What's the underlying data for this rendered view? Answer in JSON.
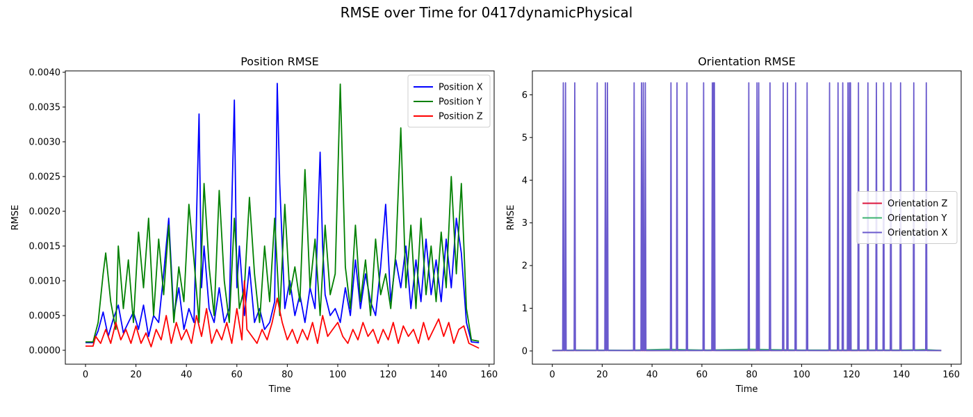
{
  "figure": {
    "suptitle": "RMSE over Time for 0417dynamicPhysical"
  },
  "chart_data": [
    {
      "type": "line",
      "title": "Position RMSE",
      "xlabel": "Time",
      "ylabel": "RMSE",
      "xlim": [
        -8,
        162
      ],
      "ylim": [
        -0.0002,
        0.00402
      ],
      "xticks": [
        0,
        20,
        40,
        60,
        80,
        100,
        120,
        140,
        160
      ],
      "yticks": [
        0.0,
        0.0005,
        0.001,
        0.0015,
        0.002,
        0.0025,
        0.003,
        0.0035,
        0.004
      ],
      "ytick_labels": [
        "0.0000",
        "0.0005",
        "0.0010",
        "0.0015",
        "0.0020",
        "0.0025",
        "0.0030",
        "0.0035",
        "0.0040"
      ],
      "grid": false,
      "legend": "top-right",
      "series": [
        {
          "name": "Position X",
          "color": "#0000ff",
          "x": [
            0,
            3,
            5,
            7,
            9,
            11,
            13,
            15,
            17,
            19,
            21,
            23,
            25,
            27,
            29,
            31,
            33,
            35,
            37,
            39,
            41,
            43,
            45,
            46,
            47,
            49,
            51,
            53,
            55,
            57,
            59,
            60,
            61,
            63,
            65,
            67,
            69,
            71,
            73,
            75,
            76,
            77,
            79,
            81,
            83,
            85,
            87,
            89,
            91,
            93,
            94,
            95,
            97,
            99,
            101,
            103,
            105,
            107,
            109,
            111,
            113,
            115,
            117,
            119,
            121,
            123,
            125,
            127,
            129,
            131,
            133,
            135,
            137,
            139,
            141,
            143,
            145,
            147,
            149,
            151,
            153,
            156
          ],
          "y": [
            0.00011,
            0.00011,
            0.00028,
            0.00055,
            0.0002,
            0.00045,
            0.00065,
            0.00025,
            0.0004,
            0.00055,
            0.0003,
            0.00065,
            0.0002,
            0.0005,
            0.0004,
            0.0011,
            0.0019,
            0.0005,
            0.0009,
            0.0003,
            0.0006,
            0.0004,
            0.0034,
            0.0009,
            0.0015,
            0.0006,
            0.0004,
            0.0009,
            0.0004,
            0.0006,
            0.0036,
            0.0009,
            0.0015,
            0.0005,
            0.0012,
            0.0004,
            0.0006,
            0.0003,
            0.0004,
            0.0007,
            0.00384,
            0.0024,
            0.0006,
            0.001,
            0.0005,
            0.0008,
            0.0004,
            0.0009,
            0.0006,
            0.00285,
            0.0015,
            0.0008,
            0.0005,
            0.0006,
            0.0004,
            0.0009,
            0.0005,
            0.0013,
            0.0006,
            0.0011,
            0.0007,
            0.0005,
            0.0012,
            0.0021,
            0.0007,
            0.0013,
            0.0009,
            0.0015,
            0.0006,
            0.0013,
            0.0007,
            0.0016,
            0.0008,
            0.0013,
            0.0007,
            0.0016,
            0.0009,
            0.0019,
            0.0014,
            0.0004,
            0.00012,
            0.00011
          ]
        },
        {
          "name": "Position Y",
          "color": "#008000",
          "x": [
            0,
            3,
            5,
            7,
            8,
            10,
            12,
            13,
            15,
            17,
            19,
            21,
            23,
            25,
            27,
            29,
            31,
            33,
            35,
            37,
            39,
            41,
            43,
            45,
            47,
            49,
            51,
            53,
            55,
            57,
            59,
            61,
            63,
            65,
            67,
            69,
            71,
            73,
            75,
            77,
            79,
            81,
            83,
            85,
            87,
            89,
            91,
            93,
            95,
            97,
            99,
            101,
            103,
            105,
            107,
            109,
            111,
            113,
            115,
            117,
            119,
            121,
            123,
            125,
            127,
            129,
            131,
            133,
            135,
            137,
            139,
            141,
            143,
            145,
            147,
            149,
            151,
            153,
            156
          ],
          "y": [
            0.00012,
            0.00012,
            0.0004,
            0.0011,
            0.0014,
            0.0007,
            0.0003,
            0.0015,
            0.0006,
            0.0013,
            0.0004,
            0.0017,
            0.0009,
            0.0019,
            0.0005,
            0.0016,
            0.0008,
            0.0018,
            0.0004,
            0.0012,
            0.0007,
            0.0021,
            0.0013,
            0.0004,
            0.0024,
            0.0012,
            0.0005,
            0.0023,
            0.001,
            0.0004,
            0.0019,
            0.0006,
            0.0009,
            0.0022,
            0.0011,
            0.0004,
            0.0015,
            0.0007,
            0.0019,
            0.0005,
            0.0021,
            0.0008,
            0.0012,
            0.0007,
            0.0026,
            0.0009,
            0.0016,
            0.0005,
            0.0018,
            0.0008,
            0.0011,
            0.00383,
            0.0012,
            0.0006,
            0.0018,
            0.0007,
            0.0013,
            0.0005,
            0.0016,
            0.0008,
            0.0011,
            0.0006,
            0.0014,
            0.0032,
            0.0009,
            0.0018,
            0.0006,
            0.0019,
            0.0008,
            0.0015,
            0.0007,
            0.0017,
            0.0009,
            0.0025,
            0.0011,
            0.0024,
            0.0006,
            0.00015,
            0.00013
          ]
        },
        {
          "name": "Position Z",
          "color": "#ff0000",
          "x": [
            0,
            3,
            4,
            6,
            8,
            10,
            12,
            14,
            16,
            18,
            20,
            22,
            24,
            26,
            28,
            30,
            32,
            34,
            36,
            38,
            40,
            42,
            44,
            46,
            48,
            50,
            52,
            54,
            56,
            58,
            60,
            62,
            63,
            64,
            66,
            68,
            70,
            72,
            74,
            76,
            78,
            80,
            82,
            84,
            86,
            88,
            90,
            92,
            94,
            96,
            98,
            100,
            102,
            104,
            106,
            108,
            110,
            112,
            114,
            116,
            118,
            120,
            122,
            124,
            126,
            128,
            130,
            132,
            134,
            136,
            138,
            140,
            142,
            144,
            146,
            148,
            150,
            152,
            156
          ],
          "y": [
            6e-05,
            6e-05,
            0.0002,
            0.0001,
            0.0003,
            0.0001,
            0.0004,
            0.00015,
            0.0003,
            0.0001,
            0.00035,
            0.0001,
            0.00025,
            5e-05,
            0.0003,
            0.00015,
            0.0005,
            0.0001,
            0.0004,
            0.00015,
            0.0003,
            0.0001,
            0.0005,
            0.0002,
            0.0006,
            0.0001,
            0.0003,
            0.00015,
            0.0004,
            0.0001,
            0.0006,
            0.00015,
            0.001,
            0.0003,
            0.0002,
            0.0001,
            0.0003,
            0.00015,
            0.0004,
            0.00075,
            0.0004,
            0.00015,
            0.0003,
            0.0001,
            0.0003,
            0.00015,
            0.0004,
            0.0001,
            0.0005,
            0.0002,
            0.0003,
            0.0004,
            0.0002,
            0.0001,
            0.0003,
            0.00015,
            0.0004,
            0.0002,
            0.0003,
            0.0001,
            0.0003,
            0.00015,
            0.0004,
            0.0001,
            0.00035,
            0.0002,
            0.0003,
            0.0001,
            0.0004,
            0.00015,
            0.0003,
            0.00045,
            0.0002,
            0.0004,
            0.0001,
            0.0003,
            0.00035,
            0.0001,
            3e-05
          ]
        }
      ]
    },
    {
      "type": "line",
      "title": "Orientation RMSE",
      "xlabel": "Time",
      "ylabel": "RMSE",
      "xlim": [
        -8,
        164
      ],
      "ylim": [
        -0.31,
        6.56
      ],
      "xticks": [
        0,
        20,
        40,
        60,
        80,
        100,
        120,
        140,
        160
      ],
      "yticks": [
        0,
        1,
        2,
        3,
        4,
        5,
        6
      ],
      "grid": false,
      "legend": "center-right",
      "series": [
        {
          "name": "Orientation Z",
          "color": "#dc143c",
          "x": [
            0,
            20,
            40,
            60,
            80,
            100,
            120,
            140,
            149,
            150,
            156
          ],
          "y": [
            0.01,
            0.012,
            0.01,
            0.012,
            0.01,
            0.012,
            0.01,
            0.012,
            0.03,
            0.012,
            0.01
          ]
        },
        {
          "name": "Orientation Y",
          "color": "#3cb371",
          "x": [
            0,
            10,
            30,
            46,
            60,
            79,
            100,
            120,
            140,
            150,
            156
          ],
          "y": [
            0.01,
            0.02,
            0.015,
            0.04,
            0.02,
            0.04,
            0.02,
            0.02,
            0.02,
            0.03,
            0.01
          ]
        },
        {
          "name": "Orientation X",
          "color": "#6a5acd",
          "baseline": 0.01,
          "x_end": 156,
          "spike_peak": 6.28,
          "spike_times": [
            4.4,
            5.3,
            9,
            18,
            21.3,
            22.1,
            32.8,
            35.8,
            36.5,
            37.3,
            47.6,
            50,
            54,
            60.7,
            64.2,
            64.7,
            65,
            78.8,
            82.1,
            82.8,
            87.3,
            92.6,
            94.3,
            97.6,
            102.2,
            111.2,
            114.6,
            116.5,
            118.6,
            119.2,
            119.6,
            122.8,
            126.6,
            130,
            132.9,
            135.8,
            139.7,
            145,
            150
          ]
        }
      ]
    }
  ]
}
